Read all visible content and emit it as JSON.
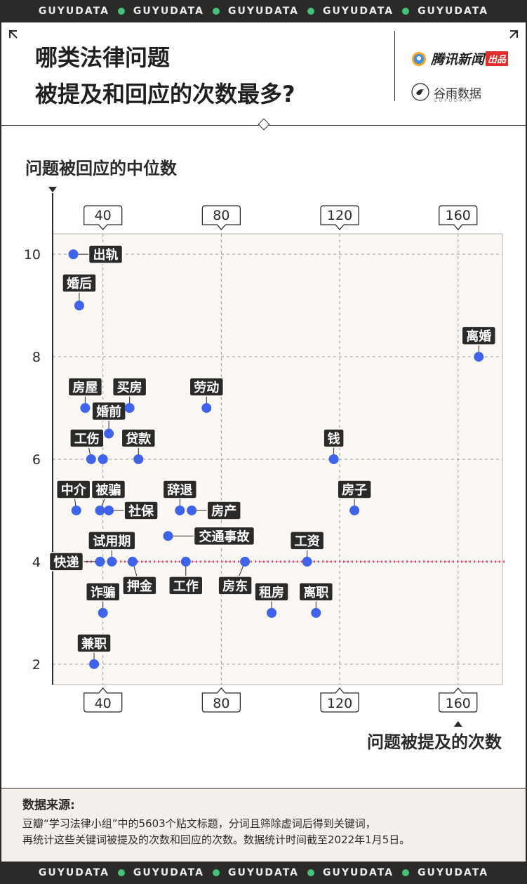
{
  "banner_word": "GUYUDATA",
  "header": {
    "title_line1": "哪类法律问题",
    "title_line2": "被提及和回应的次数最多?",
    "brand1_name": "腾讯新闻",
    "brand1_tag": "出品",
    "brand2_name": "谷雨数据",
    "brand2_sub": "GUYUDATA"
  },
  "colors": {
    "background": "#2b2a28",
    "plot_bg": "#fbf8f4",
    "point": "#3f63ea",
    "median_line": "#ee3f82",
    "label_bg": "#2b2a28",
    "label_text": "#ffffff",
    "accent_green": "#45c27a"
  },
  "chart_data": {
    "type": "scatter",
    "title": "哪类法律问题被提及和回应的次数最多?",
    "xlabel": "问题被提及的次数",
    "ylabel": "问题被回应的中位数",
    "xlim": [
      23,
      175
    ],
    "ylim": [
      1.6,
      10.4
    ],
    "xticks": [
      40,
      80,
      120,
      160
    ],
    "yticks": [
      2,
      4,
      6,
      8,
      10
    ],
    "grid": true,
    "reference_line": {
      "axis": "y",
      "value": 4,
      "style": "dotted"
    },
    "points": [
      {
        "label": "出轨",
        "x": 30,
        "y": 10
      },
      {
        "label": "婚后",
        "x": 32,
        "y": 9
      },
      {
        "label": "离婚",
        "x": 167,
        "y": 8
      },
      {
        "label": "房屋",
        "x": 34,
        "y": 7
      },
      {
        "label": "买房",
        "x": 49,
        "y": 7
      },
      {
        "label": "劳动",
        "x": 75,
        "y": 7
      },
      {
        "label": "婚前",
        "x": 42,
        "y": 6.5
      },
      {
        "label": "工伤",
        "x": 36,
        "y": 6
      },
      {
        "label": "",
        "x": 40,
        "y": 6
      },
      {
        "label": "贷款",
        "x": 52,
        "y": 6
      },
      {
        "label": "钱",
        "x": 118,
        "y": 6
      },
      {
        "label": "中介",
        "x": 31,
        "y": 5
      },
      {
        "label": "被骗",
        "x": 39,
        "y": 5
      },
      {
        "label": "社保",
        "x": 42,
        "y": 5
      },
      {
        "label": "辞退",
        "x": 66,
        "y": 5
      },
      {
        "label": "房产",
        "x": 70,
        "y": 5
      },
      {
        "label": "房子",
        "x": 125,
        "y": 5
      },
      {
        "label": "交通事故",
        "x": 62,
        "y": 4.5
      },
      {
        "label": "快递",
        "x": 39,
        "y": 4
      },
      {
        "label": "试用期",
        "x": 43,
        "y": 4
      },
      {
        "label": "押金",
        "x": 50,
        "y": 4
      },
      {
        "label": "工作",
        "x": 68,
        "y": 4
      },
      {
        "label": "房东",
        "x": 88,
        "y": 4
      },
      {
        "label": "工资",
        "x": 109,
        "y": 4
      },
      {
        "label": "诈骗",
        "x": 40,
        "y": 3
      },
      {
        "label": "租房",
        "x": 97,
        "y": 3
      },
      {
        "label": "离职",
        "x": 112,
        "y": 3
      },
      {
        "label": "兼职",
        "x": 37,
        "y": 2
      }
    ]
  },
  "footer": {
    "title": "数据来源:",
    "line1": "豆瓣“学习法律小组”中的5603个贴文标题，分词且筛除虚词后得到关键词，",
    "line2": "再统计这些关键词被提及的次数和回应的次数。数据统计时间截至2022年1月5日。"
  }
}
